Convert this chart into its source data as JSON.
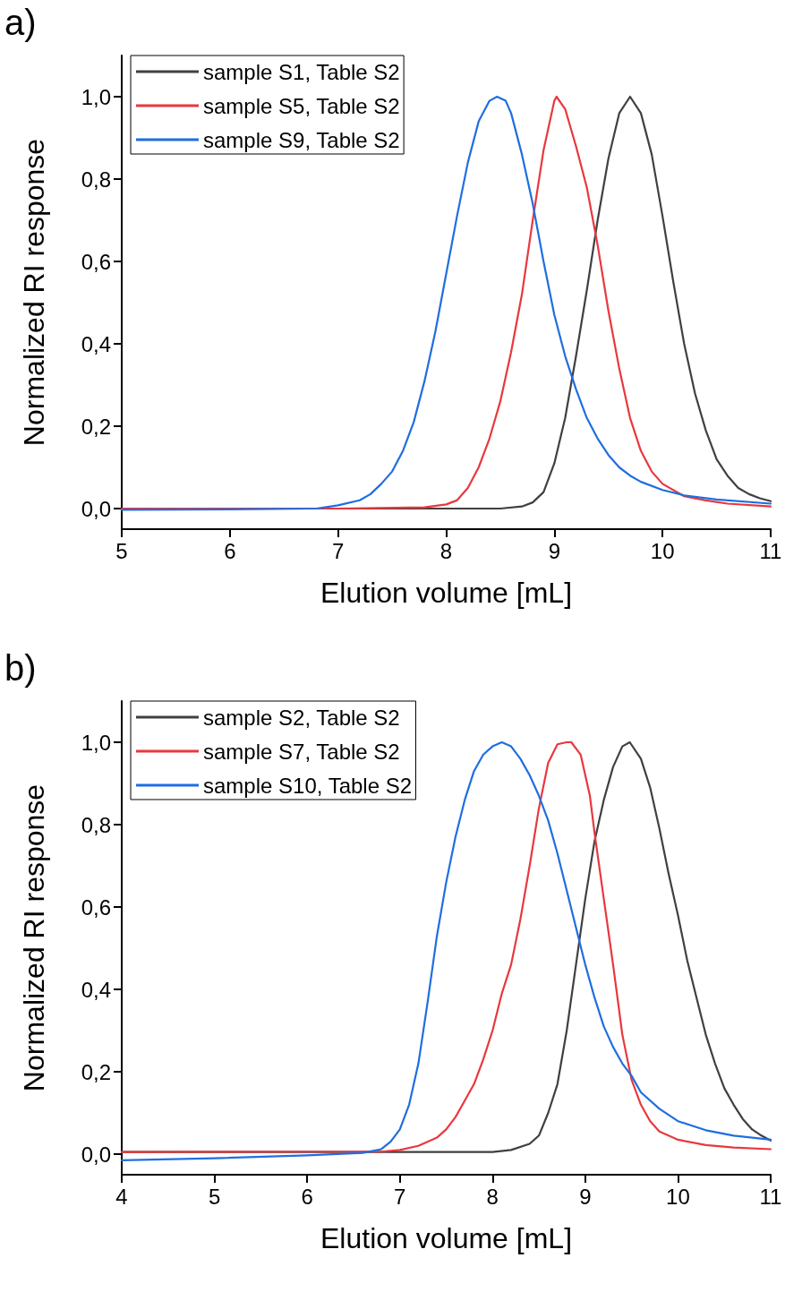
{
  "chart_data": [
    {
      "type": "line",
      "title": "a)",
      "xlabel": "Elution volume [mL]",
      "ylabel": "Normalized RI response",
      "xlim": [
        5,
        11
      ],
      "xticks": [
        5,
        6,
        7,
        8,
        9,
        10,
        11
      ],
      "ylim": [
        -0.05,
        1.1
      ],
      "yticks": [
        {
          "value": 0,
          "label": "0,0"
        },
        {
          "value": 0.2,
          "label": "0,2"
        },
        {
          "value": 0.4,
          "label": "0,4"
        },
        {
          "value": 0.6,
          "label": "0,6"
        },
        {
          "value": 0.8,
          "label": "0,8"
        },
        {
          "value": 1,
          "label": "1,0"
        }
      ],
      "grid": false,
      "legend": "top left",
      "marker": "none",
      "line_style": "solid",
      "series": [
        {
          "name": "sample S1, Table S2",
          "color": "#404040",
          "x": [
            5,
            8,
            8.5,
            8.7,
            8.8,
            8.9,
            9.0,
            9.1,
            9.2,
            9.3,
            9.4,
            9.5,
            9.6,
            9.7,
            9.8,
            9.9,
            10.0,
            10.1,
            10.2,
            10.3,
            10.4,
            10.5,
            10.6,
            10.7,
            10.8,
            10.9,
            11
          ],
          "values": [
            0,
            0,
            0,
            0.005,
            0.015,
            0.04,
            0.11,
            0.22,
            0.37,
            0.53,
            0.7,
            0.85,
            0.96,
            1.0,
            0.96,
            0.86,
            0.71,
            0.55,
            0.4,
            0.28,
            0.19,
            0.12,
            0.08,
            0.05,
            0.035,
            0.025,
            0.018
          ]
        },
        {
          "name": "sample S5, Table S2",
          "color": "#e8383d",
          "x": [
            5,
            7,
            7.8,
            8.0,
            8.1,
            8.2,
            8.3,
            8.4,
            8.5,
            8.6,
            8.7,
            8.8,
            8.9,
            9.0,
            9.02,
            9.1,
            9.2,
            9.3,
            9.4,
            9.5,
            9.6,
            9.7,
            9.8,
            9.9,
            10.0,
            10.2,
            10.4,
            10.6,
            11
          ],
          "values": [
            0,
            0,
            0.003,
            0.01,
            0.02,
            0.05,
            0.1,
            0.17,
            0.26,
            0.38,
            0.52,
            0.7,
            0.87,
            0.99,
            1.0,
            0.97,
            0.88,
            0.78,
            0.64,
            0.48,
            0.34,
            0.22,
            0.14,
            0.09,
            0.06,
            0.03,
            0.02,
            0.012,
            0.005
          ]
        },
        {
          "name": "sample S9, Table S2",
          "color": "#1f6ee0",
          "x": [
            5,
            6,
            6.8,
            7.0,
            7.2,
            7.3,
            7.4,
            7.5,
            7.6,
            7.7,
            7.8,
            7.9,
            8.0,
            8.1,
            8.2,
            8.3,
            8.4,
            8.47,
            8.55,
            8.6,
            8.7,
            8.8,
            8.9,
            9.0,
            9.1,
            9.2,
            9.3,
            9.4,
            9.5,
            9.6,
            9.7,
            9.8,
            10.0,
            10.2,
            10.5,
            11
          ],
          "values": [
            -0.003,
            -0.002,
            0,
            0.008,
            0.02,
            0.035,
            0.06,
            0.09,
            0.14,
            0.21,
            0.31,
            0.43,
            0.57,
            0.71,
            0.84,
            0.94,
            0.99,
            1.0,
            0.99,
            0.96,
            0.86,
            0.74,
            0.6,
            0.47,
            0.37,
            0.29,
            0.22,
            0.17,
            0.13,
            0.1,
            0.08,
            0.065,
            0.045,
            0.032,
            0.022,
            0.012
          ]
        }
      ]
    },
    {
      "type": "line",
      "title": "b)",
      "xlabel": "Elution volume [mL]",
      "ylabel": "Normalized RI response",
      "xlim": [
        4,
        11
      ],
      "xticks": [
        4,
        5,
        6,
        7,
        8,
        9,
        10,
        11
      ],
      "ylim": [
        -0.05,
        1.1
      ],
      "yticks": [
        {
          "value": 0,
          "label": "0,0"
        },
        {
          "value": 0.2,
          "label": "0,2"
        },
        {
          "value": 0.4,
          "label": "0,4"
        },
        {
          "value": 0.6,
          "label": "0,6"
        },
        {
          "value": 0.8,
          "label": "0,8"
        },
        {
          "value": 1,
          "label": "1,0"
        }
      ],
      "grid": false,
      "legend": "top left",
      "marker": "none",
      "line_style": "solid",
      "series": [
        {
          "name": "sample S2, Table S2",
          "color": "#404040",
          "x": [
            4,
            8,
            8.2,
            8.4,
            8.5,
            8.6,
            8.7,
            8.8,
            8.9,
            9.0,
            9.1,
            9.2,
            9.3,
            9.4,
            9.48,
            9.6,
            9.7,
            9.8,
            9.9,
            10.0,
            10.1,
            10.2,
            10.3,
            10.4,
            10.5,
            10.6,
            10.7,
            10.8,
            10.9,
            11
          ],
          "values": [
            0.005,
            0.005,
            0.01,
            0.025,
            0.045,
            0.1,
            0.17,
            0.3,
            0.46,
            0.62,
            0.76,
            0.86,
            0.94,
            0.99,
            1.0,
            0.96,
            0.89,
            0.79,
            0.68,
            0.58,
            0.47,
            0.38,
            0.29,
            0.22,
            0.16,
            0.12,
            0.085,
            0.06,
            0.045,
            0.033
          ]
        },
        {
          "name": "sample S7, Table S2",
          "color": "#e8383d",
          "x": [
            4,
            6,
            6.8,
            7.0,
            7.2,
            7.4,
            7.5,
            7.6,
            7.7,
            7.8,
            7.9,
            8.0,
            8.1,
            8.2,
            8.3,
            8.4,
            8.5,
            8.6,
            8.7,
            8.8,
            8.85,
            8.95,
            9.05,
            9.1,
            9.2,
            9.3,
            9.4,
            9.5,
            9.6,
            9.7,
            9.8,
            10.0,
            10.3,
            10.6,
            11
          ],
          "values": [
            0.005,
            0.006,
            0.006,
            0.01,
            0.02,
            0.04,
            0.06,
            0.09,
            0.13,
            0.17,
            0.23,
            0.3,
            0.39,
            0.46,
            0.57,
            0.7,
            0.84,
            0.95,
            0.995,
            1.0,
            1.0,
            0.97,
            0.87,
            0.78,
            0.62,
            0.46,
            0.29,
            0.18,
            0.12,
            0.08,
            0.055,
            0.035,
            0.022,
            0.016,
            0.012
          ]
        },
        {
          "name": "sample S10, Table S2",
          "color": "#1f6ee0",
          "x": [
            4,
            5,
            6,
            6.6,
            6.8,
            6.9,
            7.0,
            7.1,
            7.2,
            7.3,
            7.4,
            7.5,
            7.6,
            7.7,
            7.8,
            7.9,
            8.0,
            8.1,
            8.2,
            8.3,
            8.4,
            8.5,
            8.6,
            8.7,
            8.8,
            8.9,
            9.0,
            9.1,
            9.2,
            9.3,
            9.4,
            9.5,
            9.6,
            9.8,
            10.0,
            10.3,
            10.6,
            11
          ],
          "values": [
            -0.015,
            -0.01,
            -0.003,
            0.003,
            0.012,
            0.03,
            0.06,
            0.12,
            0.22,
            0.37,
            0.53,
            0.66,
            0.77,
            0.86,
            0.93,
            0.97,
            0.99,
            1.0,
            0.99,
            0.96,
            0.92,
            0.87,
            0.81,
            0.73,
            0.64,
            0.55,
            0.46,
            0.38,
            0.31,
            0.26,
            0.22,
            0.19,
            0.15,
            0.11,
            0.08,
            0.058,
            0.045,
            0.035
          ]
        }
      ]
    }
  ]
}
